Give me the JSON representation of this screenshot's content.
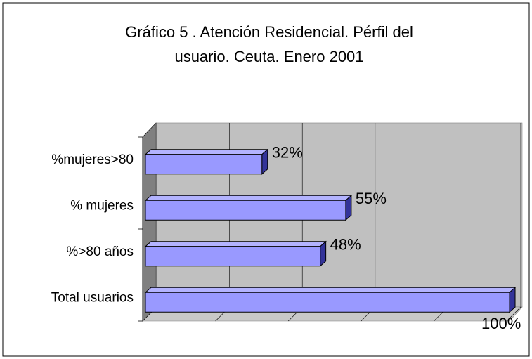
{
  "chart_data": {
    "type": "bar3d",
    "title": "Gráfico 5 . Atención Residencial. Pérfil del",
    "subtitle": "usuario. Ceuta. Enero 2001",
    "categories": [
      "%mujeres>80",
      "% mujeres",
      "%>80 años",
      "Total usuarios"
    ],
    "values": [
      32,
      55,
      48,
      100
    ],
    "value_labels": [
      "32%",
      "55%",
      "48%",
      "100%"
    ],
    "color": "#9999ff",
    "xlim": [
      0,
      100
    ],
    "xticks": [
      0,
      20,
      40,
      60,
      80,
      100
    ],
    "grid": true
  }
}
